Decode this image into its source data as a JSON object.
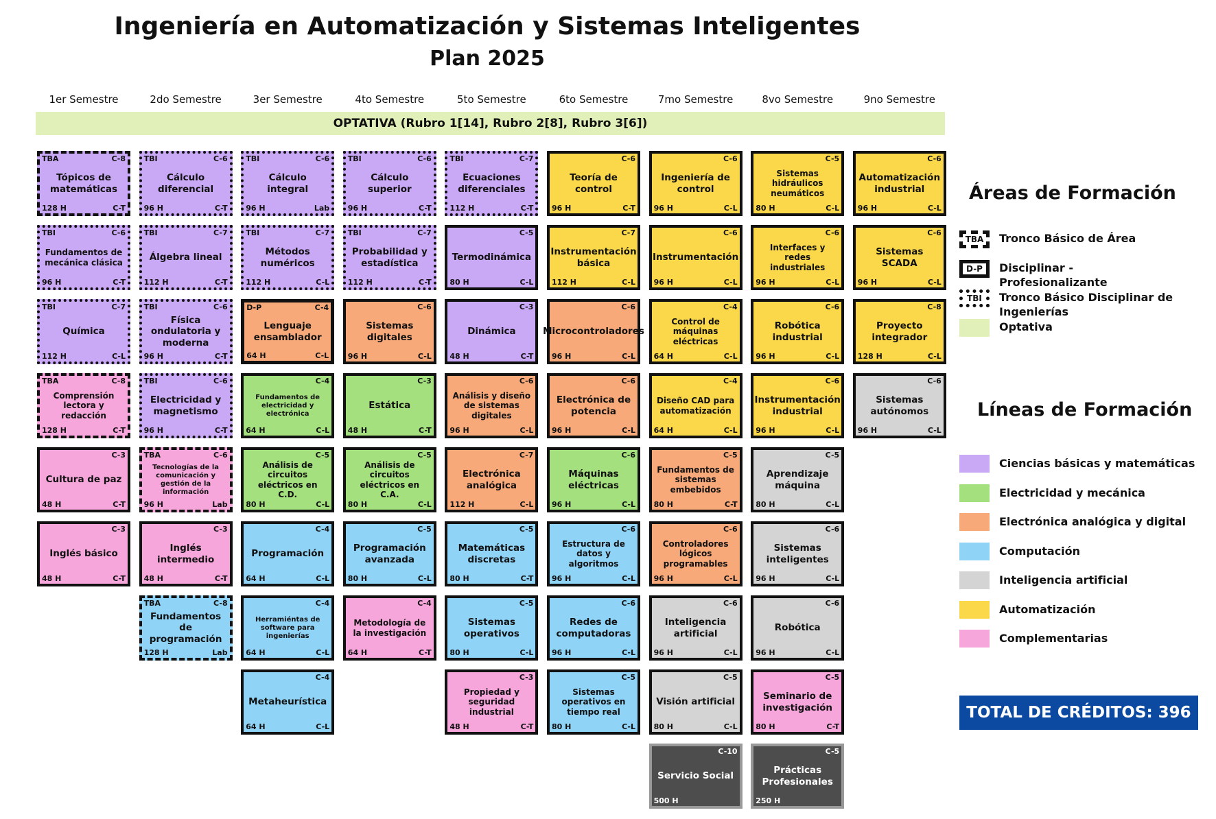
{
  "header": {
    "title": "Ingeniería en Automatización y Sistemas Inteligentes",
    "subtitle": "Plan 2025"
  },
  "semesters": [
    "1er Semestre",
    "2do Semestre",
    "3er Semestre",
    "4to Semestre",
    "5to Semestre",
    "6to Semestre",
    "7mo Semestre",
    "8vo Semestre",
    "9no Semestre"
  ],
  "optativa_banner": "OPTATIVA (Rubro 1[14], Rubro 2[8], Rubro 3[6])",
  "columns": [
    {
      "courses": [
        {
          "tag": "TBA",
          "credits": "C-8",
          "name": "Tópicos de matemáticas",
          "hours": "128 H",
          "kind": "C-T",
          "color": "#c9a8f5"
        },
        {
          "tag": "TBI",
          "credits": "C-6",
          "name": "Fundamentos de mecánica clásica",
          "hours": "96 H",
          "kind": "C-T",
          "color": "#c9a8f5"
        },
        {
          "tag": "TBI",
          "credits": "C-7",
          "name": "Química",
          "hours": "112 H",
          "kind": "C-L",
          "color": "#c9a8f5"
        },
        {
          "tag": "TBA",
          "credits": "C-8",
          "name": "Comprensión lectora y redacción",
          "hours": "128 H",
          "kind": "C-T",
          "color": "#f7a6dc"
        },
        {
          "credits": "C-3",
          "name": "Cultura de paz",
          "hours": "48 H",
          "kind": "C-T",
          "color": "#f7a6dc"
        },
        {
          "credits": "C-3",
          "name": "Inglés básico",
          "hours": "48 H",
          "kind": "C-T",
          "color": "#f7a6dc"
        }
      ]
    },
    {
      "courses": [
        {
          "tag": "TBI",
          "credits": "C-6",
          "name": "Cálculo diferencial",
          "hours": "96 H",
          "kind": "C-T",
          "color": "#c9a8f5"
        },
        {
          "tag": "TBI",
          "credits": "C-7",
          "name": "Álgebra lineal",
          "hours": "112 H",
          "kind": "C-T",
          "color": "#c9a8f5"
        },
        {
          "tag": "TBI",
          "credits": "C-6",
          "name": "Física ondulatoria y moderna",
          "hours": "96 H",
          "kind": "C-T",
          "color": "#c9a8f5"
        },
        {
          "tag": "TBI",
          "credits": "C-6",
          "name": "Electricidad y magnetismo",
          "hours": "96 H",
          "kind": "C-T",
          "color": "#c9a8f5"
        },
        {
          "tag": "TBA",
          "credits": "C-6",
          "name": "Tecnologías de la comunicación y gestión de la información",
          "hours": "96 H",
          "kind": "Lab",
          "color": "#f7a6dc"
        },
        {
          "credits": "C-3",
          "name": "Inglés intermedio",
          "hours": "48 H",
          "kind": "C-T",
          "color": "#f7a6dc"
        },
        {
          "tag": "TBA",
          "credits": "C-8",
          "name": "Fundamentos de programación",
          "hours": "128 H",
          "kind": "Lab",
          "color": "#8fd3f7"
        }
      ]
    },
    {
      "courses": [
        {
          "tag": "TBI",
          "credits": "C-6",
          "name": "Cálculo integral",
          "hours": "96 H",
          "kind": "Lab",
          "color": "#c9a8f5"
        },
        {
          "tag": "TBI",
          "credits": "C-7",
          "name": "Métodos numéricos",
          "hours": "112 H",
          "kind": "C-L",
          "color": "#c9a8f5"
        },
        {
          "tag": "D-P",
          "credits": "C-4",
          "name": "Lenguaje ensamblador",
          "hours": "64 H",
          "kind": "C-L",
          "color": "#f7a97a"
        },
        {
          "credits": "C-4",
          "name": "Fundamentos de electricidad y electrónica",
          "hours": "64 H",
          "kind": "C-L",
          "color": "#a4e07e"
        },
        {
          "credits": "C-5",
          "name": "Análisis de circuitos eléctricos en C.D.",
          "hours": "80 H",
          "kind": "C-L",
          "color": "#a4e07e"
        },
        {
          "credits": "C-4",
          "name": "Programación",
          "hours": "64 H",
          "kind": "C-L",
          "color": "#8fd3f7"
        },
        {
          "credits": "C-4",
          "name": "Herramiéntas de software para ingenierías",
          "hours": "64 H",
          "kind": "C-L",
          "color": "#8fd3f7"
        },
        {
          "credits": "C-4",
          "name": "Metaheurística",
          "hours": "64 H",
          "kind": "C-L",
          "color": "#8fd3f7"
        }
      ]
    },
    {
      "courses": [
        {
          "tag": "TBI",
          "credits": "C-6",
          "name": "Cálculo superior",
          "hours": "96 H",
          "kind": "C-T",
          "color": "#c9a8f5"
        },
        {
          "tag": "TBI",
          "credits": "C-7",
          "name": "Probabilidad y estadística",
          "hours": "112 H",
          "kind": "C-T",
          "color": "#c9a8f5"
        },
        {
          "credits": "C-6",
          "name": "Sistemas digitales",
          "hours": "96 H",
          "kind": "C-L",
          "color": "#f7a97a"
        },
        {
          "credits": "C-3",
          "name": "Estática",
          "hours": "48 H",
          "kind": "C-T",
          "color": "#a4e07e"
        },
        {
          "credits": "C-5",
          "name": "Análisis de circuitos eléctricos en C.A.",
          "hours": "80 H",
          "kind": "C-L",
          "color": "#a4e07e"
        },
        {
          "credits": "C-5",
          "name": "Programación avanzada",
          "hours": "80 H",
          "kind": "C-L",
          "color": "#8fd3f7"
        },
        {
          "credits": "C-4",
          "name": "Metodología de la investigación",
          "hours": "64 H",
          "kind": "C-T",
          "color": "#f7a6dc"
        }
      ]
    },
    {
      "courses": [
        {
          "tag": "TBI",
          "credits": "C-7",
          "name": "Ecuaciones diferenciales",
          "hours": "112 H",
          "kind": "C-T",
          "color": "#c9a8f5"
        },
        {
          "credits": "C-5",
          "name": "Termodinámica",
          "hours": "80 H",
          "kind": "C-L",
          "color": "#c9a8f5"
        },
        {
          "credits": "C-3",
          "name": "Dinámica",
          "hours": "48 H",
          "kind": "C-T",
          "color": "#c9a8f5"
        },
        {
          "credits": "C-6",
          "name": "Análisis y diseño de sistemas digitales",
          "hours": "96 H",
          "kind": "C-L",
          "color": "#f7a97a"
        },
        {
          "credits": "C-7",
          "name": "Electrónica analógica",
          "hours": "112 H",
          "kind": "C-L",
          "color": "#f7a97a"
        },
        {
          "credits": "C-5",
          "name": "Matemáticas discretas",
          "hours": "80 H",
          "kind": "C-T",
          "color": "#8fd3f7"
        },
        {
          "credits": "C-5",
          "name": "Sistemas operativos",
          "hours": "80 H",
          "kind": "C-L",
          "color": "#8fd3f7"
        },
        {
          "credits": "C-3",
          "name": "Propiedad y seguridad industrial",
          "hours": "48 H",
          "kind": "C-T",
          "color": "#f7a6dc"
        }
      ]
    },
    {
      "courses": [
        {
          "credits": "C-6",
          "name": "Teoría de control",
          "hours": "96 H",
          "kind": "C-T",
          "color": "#fad84a"
        },
        {
          "credits": "C-7",
          "name": "Instrumentación básica",
          "hours": "112 H",
          "kind": "C-L",
          "color": "#fad84a"
        },
        {
          "credits": "C-6",
          "name": "Microcontroladores",
          "hours": "96 H",
          "kind": "C-L",
          "color": "#f7a97a"
        },
        {
          "credits": "C-6",
          "name": "Electrónica de potencia",
          "hours": "96 H",
          "kind": "C-L",
          "color": "#f7a97a"
        },
        {
          "credits": "C-6",
          "name": "Máquinas eléctricas",
          "hours": "96 H",
          "kind": "C-L",
          "color": "#a4e07e"
        },
        {
          "credits": "C-6",
          "name": "Estructura de datos y algoritmos",
          "hours": "96 H",
          "kind": "C-L",
          "color": "#8fd3f7"
        },
        {
          "credits": "C-6",
          "name": "Redes de computadoras",
          "hours": "96 H",
          "kind": "C-L",
          "color": "#8fd3f7"
        },
        {
          "credits": "C-5",
          "name": "Sistemas operativos en tiempo real",
          "hours": "80 H",
          "kind": "C-L",
          "color": "#8fd3f7"
        }
      ]
    },
    {
      "courses": [
        {
          "credits": "C-6",
          "name": "Ingeniería de control",
          "hours": "96 H",
          "kind": "C-L",
          "color": "#fad84a"
        },
        {
          "credits": "C-6",
          "name": "Instrumentación",
          "hours": "96 H",
          "kind": "C-L",
          "color": "#fad84a"
        },
        {
          "credits": "C-4",
          "name": "Control de máquinas eléctricas",
          "hours": "64 H",
          "kind": "C-L",
          "color": "#fad84a"
        },
        {
          "credits": "C-4",
          "name": "Diseño CAD para automatización",
          "hours": "64 H",
          "kind": "C-L",
          "color": "#fad84a"
        },
        {
          "credits": "C-5",
          "name": "Fundamentos de sistemas embebidos",
          "hours": "80 H",
          "kind": "C-T",
          "color": "#f7a97a"
        },
        {
          "credits": "C-6",
          "name": "Controladores lógicos programables",
          "hours": "96 H",
          "kind": "C-L",
          "color": "#f7a97a"
        },
        {
          "credits": "C-6",
          "name": "Inteligencia artificial",
          "hours": "96 H",
          "kind": "C-L",
          "color": "#d4d4d4"
        },
        {
          "credits": "C-5",
          "name": "Visión artificial",
          "hours": "80 H",
          "kind": "C-L",
          "color": "#d4d4d4"
        },
        {
          "credits": "C-10",
          "name": "Servicio Social",
          "hours": "500 H",
          "color": "#4d4d4d"
        }
      ]
    },
    {
      "courses": [
        {
          "credits": "C-5",
          "name": "Sistemas hidráulicos neumáticos",
          "hours": "80 H",
          "kind": "C-L",
          "color": "#fad84a"
        },
        {
          "credits": "C-6",
          "name": "Interfaces y redes industriales",
          "hours": "96 H",
          "kind": "C-L",
          "color": "#fad84a"
        },
        {
          "credits": "C-6",
          "name": "Robótica industrial",
          "hours": "96 H",
          "kind": "C-L",
          "color": "#fad84a"
        },
        {
          "credits": "C-6",
          "name": "Instrumentación industrial",
          "hours": "96 H",
          "kind": "C-L",
          "color": "#fad84a"
        },
        {
          "credits": "C-5",
          "name": "Aprendizaje máquina",
          "hours": "80 H",
          "kind": "C-L",
          "color": "#d4d4d4"
        },
        {
          "credits": "C-6",
          "name": "Sistemas inteligentes",
          "hours": "96 H",
          "kind": "C-L",
          "color": "#d4d4d4"
        },
        {
          "credits": "C-6",
          "name": "Robótica",
          "hours": "96 H",
          "kind": "C-L",
          "color": "#d4d4d4"
        },
        {
          "credits": "C-5",
          "name": "Seminario de investigación",
          "hours": "80 H",
          "kind": "C-T",
          "color": "#f7a6dc"
        },
        {
          "credits": "C-5",
          "name": "Prácticas Profesionales",
          "hours": "250 H",
          "color": "#4d4d4d"
        }
      ]
    },
    {
      "courses": [
        {
          "credits": "C-6",
          "name": "Automatización industrial",
          "hours": "96 H",
          "kind": "C-L",
          "color": "#fad84a"
        },
        {
          "credits": "C-6",
          "name": "Sistemas SCADA",
          "hours": "96 H",
          "kind": "C-L",
          "color": "#fad84a"
        },
        {
          "credits": "C-8",
          "name": "Proyecto integrador",
          "hours": "128 H",
          "kind": "C-L",
          "color": "#fad84a"
        },
        {
          "credits": "C-6",
          "name": "Sistemas autónomos",
          "hours": "96 H",
          "kind": "C-L",
          "color": "#d4d4d4"
        }
      ]
    }
  ],
  "areas": {
    "title": "Áreas de Formación",
    "items": [
      {
        "tag": "TBA",
        "label": "Tronco Básico de Área",
        "border": "dashed"
      },
      {
        "tag": "D-P",
        "label": "Disciplinar - Profesionalizante",
        "border": "solid"
      },
      {
        "tag": "TBI",
        "label": "Tronco Básico Disciplinar de Ingenierías",
        "border": "dotted"
      },
      {
        "label": "Optativa",
        "color": "#e1efb8"
      }
    ]
  },
  "lines": {
    "title": "Líneas de Formación",
    "items": [
      {
        "label": "Ciencias básicas y matemáticas",
        "color": "#c9a8f5"
      },
      {
        "label": "Electricidad y mecánica",
        "color": "#a4e07e"
      },
      {
        "label": "Electrónica analógica y digital",
        "color": "#f7a97a"
      },
      {
        "label": "Computación",
        "color": "#8fd3f7"
      },
      {
        "label": "Inteligencia artificial",
        "color": "#d4d4d4"
      },
      {
        "label": "Automatización",
        "color": "#fad84a"
      },
      {
        "label": "Complementarias",
        "color": "#f7a6dc"
      }
    ]
  },
  "total": "TOTAL DE CRÉDITOS: 396"
}
